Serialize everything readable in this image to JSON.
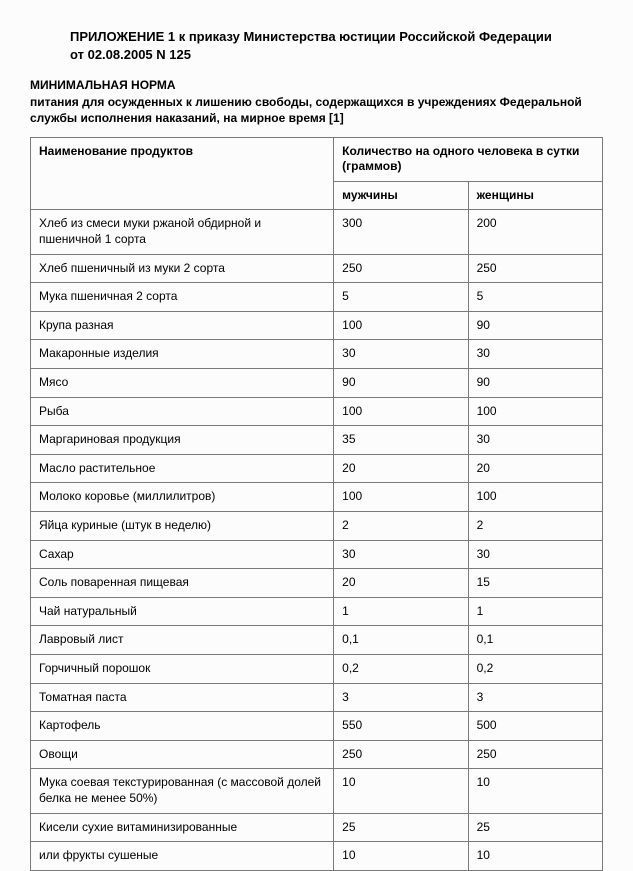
{
  "appendix_title": "ПРИЛОЖЕНИЕ 1 к приказу Министерства юстиции Российской Федерации от 02.08.2005 N 125",
  "norm_title": "МИНИМАЛЬНАЯ НОРМА",
  "norm_subtitle": "питания для осужденных к лишению свободы, содержащихся в учреждениях Федеральной службы исполнения наказаний, на мирное время [1]",
  "table": {
    "header_product": "Наименование продуктов",
    "header_qty": "Количество на одного человека в сутки (граммов)",
    "header_men": "мужчины",
    "header_women": "женщины",
    "rows": [
      {
        "name": "Хлеб из смеси муки ржаной обдирной и пшеничной 1 сорта",
        "men": "300",
        "women": "200"
      },
      {
        "name": "Хлеб пшеничный из муки 2 сорта",
        "men": "250",
        "women": "250"
      },
      {
        "name": "Мука пшеничная 2 сорта",
        "men": "5",
        "women": "5"
      },
      {
        "name": "Крупа разная",
        "men": "100",
        "women": "90"
      },
      {
        "name": "Макаронные изделия",
        "men": "30",
        "women": "30"
      },
      {
        "name": "Мясо",
        "men": "90",
        "women": "90"
      },
      {
        "name": "Рыба",
        "men": "100",
        "women": "100"
      },
      {
        "name": "Маргариновая продукция",
        "men": "35",
        "women": "30"
      },
      {
        "name": "Масло растительное",
        "men": "20",
        "women": "20"
      },
      {
        "name": "Молоко коровье (миллилитров)",
        "men": "100",
        "women": "100"
      },
      {
        "name": "Яйца куриные (штук в неделю)",
        "men": "2",
        "women": "2"
      },
      {
        "name": "Сахар",
        "men": "30",
        "women": "30"
      },
      {
        "name": "Соль поваренная пищевая",
        "men": "20",
        "women": "15"
      },
      {
        "name": "Чай натуральный",
        "men": "1",
        "women": "1"
      },
      {
        "name": "Лавровый лист",
        "men": "0,1",
        "women": "0,1"
      },
      {
        "name": "Горчичный порошок",
        "men": "0,2",
        "women": "0,2"
      },
      {
        "name": "Томатная паста",
        "men": "3",
        "women": "3"
      },
      {
        "name": "Картофель",
        "men": "550",
        "women": "500"
      },
      {
        "name": "Овощи",
        "men": "250",
        "women": "250"
      },
      {
        "name": "Мука соевая текстурированная (с массовой долей белка не менее 50%)",
        "men": "10",
        "women": "10"
      },
      {
        "name": "Кисели сухие витаминизированные",
        "men": "25",
        "women": "25"
      },
      {
        "name": "или фрукты сушеные",
        "men": "10",
        "women": "10"
      }
    ]
  }
}
